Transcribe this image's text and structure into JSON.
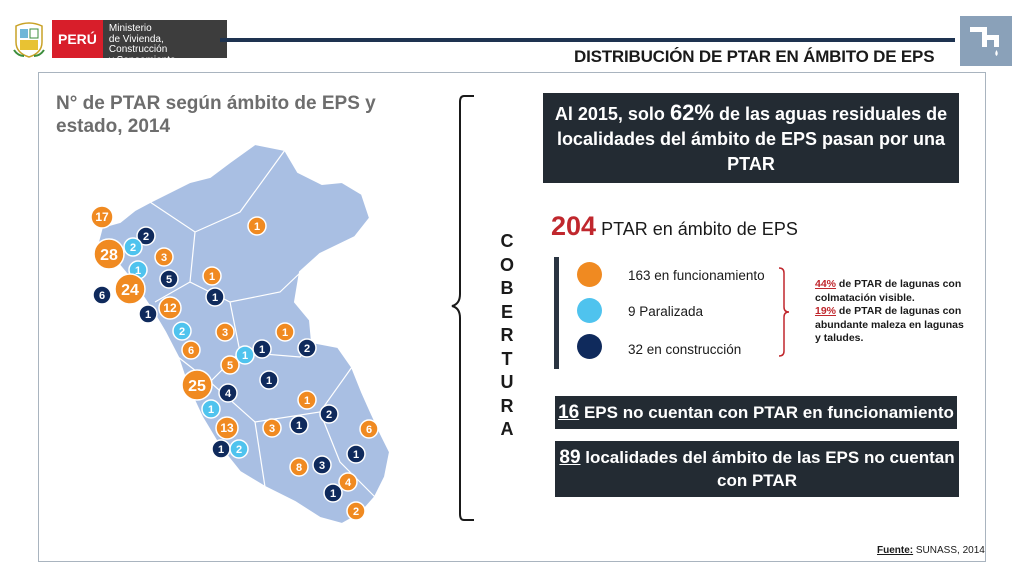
{
  "header": {
    "country": "PERÚ",
    "ministry_line1": "Ministerio",
    "ministry_line2": "de Vivienda, Construcción",
    "ministry_line3": "y Saneamiento",
    "slide_title": "DISTRIBUCIÓN DE PTAR EN ÁMBITO DE EPS",
    "corner_icon": "faucet-icon"
  },
  "left": {
    "title": "N° de PTAR según ámbito de EPS y estado, 2014"
  },
  "map_labels": [
    {
      "value": "17",
      "status": "funcionamiento"
    },
    {
      "value": "2",
      "status": "construccion"
    },
    {
      "value": "1",
      "status": "funcionamiento"
    },
    {
      "value": "28",
      "status": "funcionamiento"
    },
    {
      "value": "2",
      "status": "paralizada"
    },
    {
      "value": "3",
      "status": "funcionamiento"
    },
    {
      "value": "1",
      "status": "paralizada"
    },
    {
      "value": "5",
      "status": "construccion"
    },
    {
      "value": "1",
      "status": "funcionamiento"
    },
    {
      "value": "6",
      "status": "construccion"
    },
    {
      "value": "24",
      "status": "funcionamiento"
    },
    {
      "value": "1",
      "status": "construccion"
    },
    {
      "value": "12",
      "status": "funcionamiento"
    },
    {
      "value": "1",
      "status": "construccion"
    },
    {
      "value": "2",
      "status": "paralizada"
    },
    {
      "value": "3",
      "status": "funcionamiento"
    },
    {
      "value": "1",
      "status": "funcionamiento"
    },
    {
      "value": "6",
      "status": "funcionamiento"
    },
    {
      "value": "1",
      "status": "paralizada"
    },
    {
      "value": "1",
      "status": "construccion"
    },
    {
      "value": "2",
      "status": "construccion"
    },
    {
      "value": "5",
      "status": "funcionamiento"
    },
    {
      "value": "1",
      "status": "construccion"
    },
    {
      "value": "25",
      "status": "funcionamiento"
    },
    {
      "value": "4",
      "status": "construccion"
    },
    {
      "value": "1",
      "status": "funcionamiento"
    },
    {
      "value": "1",
      "status": "paralizada"
    },
    {
      "value": "2",
      "status": "construccion"
    },
    {
      "value": "13",
      "status": "funcionamiento"
    },
    {
      "value": "3",
      "status": "funcionamiento"
    },
    {
      "value": "1",
      "status": "construccion"
    },
    {
      "value": "6",
      "status": "funcionamiento"
    },
    {
      "value": "1",
      "status": "construccion"
    },
    {
      "value": "2",
      "status": "paralizada"
    },
    {
      "value": "1",
      "status": "construccion"
    },
    {
      "value": "8",
      "status": "funcionamiento"
    },
    {
      "value": "3",
      "status": "construccion"
    },
    {
      "value": "4",
      "status": "funcionamiento"
    },
    {
      "value": "1",
      "status": "construccion"
    },
    {
      "value": "2",
      "status": "funcionamiento"
    }
  ],
  "coverage": {
    "vertical_label": [
      "C",
      "O",
      "B",
      "E",
      "R",
      "T",
      "U",
      "R",
      "A"
    ],
    "box1_pre": "Al  2015,  solo ",
    "box1_pct": "62%",
    "box1_post": " de las aguas residuales de localidades del ámbito de EPS pasan por una PTAR",
    "total_num": "204",
    "total_label": " PTAR en ámbito de EPS",
    "legend": [
      {
        "label": "163 en funcionamiento",
        "color": "#f08a21"
      },
      {
        "label": "9 Paralizada",
        "color": "#4fc3ee"
      },
      {
        "label": "32 en construcción",
        "color": "#0f2a5c"
      }
    ],
    "note1_pct": "44%",
    "note1_text": " de PTAR de lagunas con colmatación visible.",
    "note2_pct": "19%",
    "note2_text": " de PTAR de lagunas con abundante maleza en lagunas y taludes.",
    "box2_num": "16",
    "box2_text": " EPS no cuentan con PTAR en funcionamiento",
    "box3_num": "89",
    "box3_text": " localidades del ámbito de las EPS no cuentan con PTAR"
  },
  "source": {
    "label": "Fuente:",
    "text": " SUNASS, 2014"
  },
  "colors": {
    "funcionamiento": "#f08a21",
    "paralizada": "#4fc3ee",
    "construccion": "#0f2a5c",
    "map_fill": "#a9bfe3",
    "accent_red": "#c0272d",
    "dark_box": "#232b33"
  }
}
